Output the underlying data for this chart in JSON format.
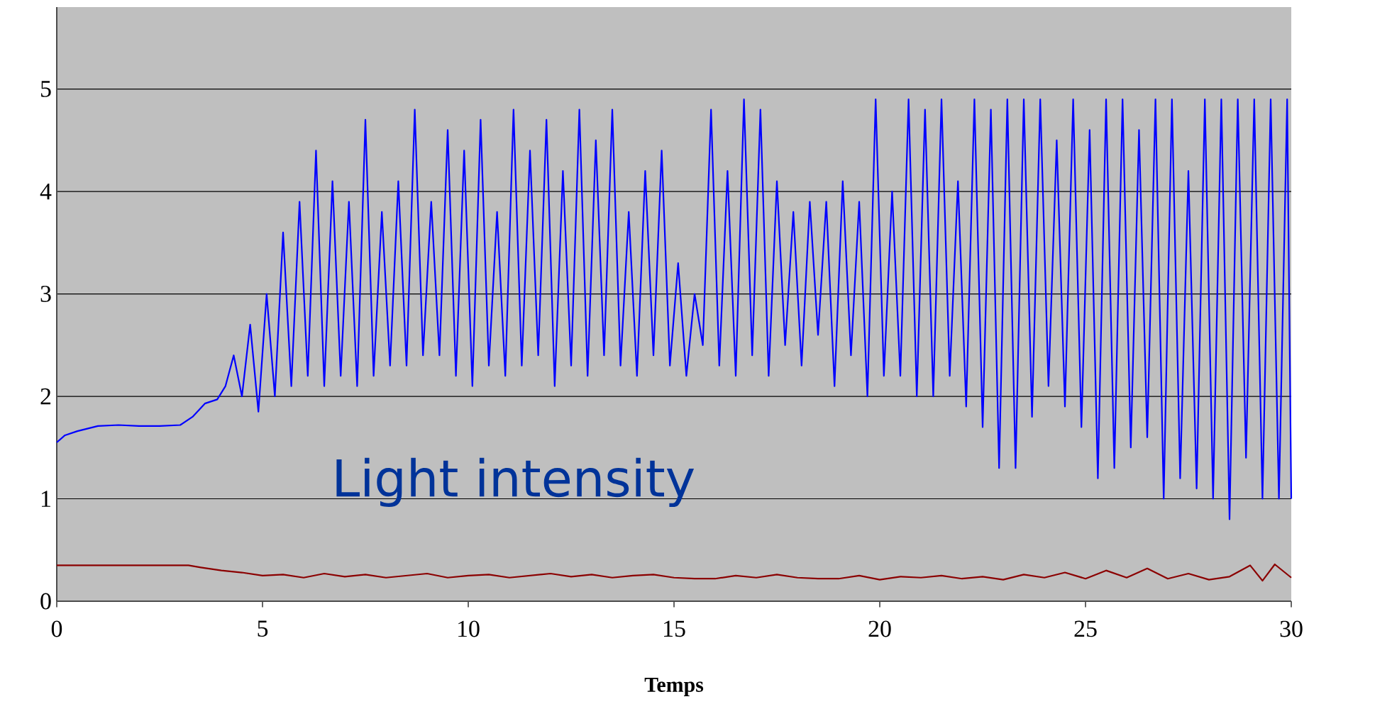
{
  "chart_data": {
    "type": "line",
    "xlabel": "Temps",
    "annotations": [
      "Light intensity"
    ],
    "xlim": [
      0,
      30
    ],
    "xticks": [
      0,
      5,
      10,
      15,
      20,
      25,
      30
    ],
    "ylim": [
      0,
      5.8
    ],
    "yticks": [
      0,
      1,
      2,
      3,
      4,
      5
    ],
    "grid": "y",
    "line_style": "solid",
    "marker": "none",
    "series": [
      {
        "color": "#8b0000",
        "x": [
          0,
          3.2,
          3.5,
          4,
          4.5,
          5,
          5.5,
          6,
          6.5,
          7,
          7.5,
          8,
          8.5,
          9,
          9.5,
          10,
          10.5,
          11,
          11.5,
          12,
          12.5,
          13,
          13.5,
          14,
          14.5,
          15,
          15.5,
          16,
          16.5,
          17,
          17.5,
          18,
          18.5,
          19,
          19.5,
          20,
          20.5,
          21,
          21.5,
          22,
          22.5,
          23,
          23.5,
          24,
          24.5,
          25,
          25.5,
          26,
          26.5,
          27,
          27.5,
          28,
          28.5,
          29,
          29.3,
          29.6,
          30
        ],
        "values": [
          0.35,
          0.35,
          0.33,
          0.3,
          0.28,
          0.25,
          0.26,
          0.23,
          0.27,
          0.24,
          0.26,
          0.23,
          0.25,
          0.27,
          0.23,
          0.25,
          0.26,
          0.23,
          0.25,
          0.27,
          0.24,
          0.26,
          0.23,
          0.25,
          0.26,
          0.23,
          0.22,
          0.22,
          0.25,
          0.23,
          0.26,
          0.23,
          0.22,
          0.22,
          0.25,
          0.21,
          0.24,
          0.23,
          0.25,
          0.22,
          0.24,
          0.21,
          0.26,
          0.23,
          0.28,
          0.22,
          0.3,
          0.23,
          0.32,
          0.22,
          0.27,
          0.21,
          0.24,
          0.35,
          0.2,
          0.36,
          0.23
        ]
      },
      {
        "color": "#0000ff",
        "x": [
          0,
          0.2,
          0.5,
          1,
          1.5,
          2,
          2.5,
          3,
          3.3,
          3.6,
          3.9,
          4.1,
          4.3,
          4.5,
          4.7,
          4.9,
          5.1,
          5.3,
          5.5,
          5.7,
          5.9,
          6.1,
          6.3,
          6.5,
          6.7,
          6.9,
          7.1,
          7.3,
          7.5,
          7.7,
          7.9,
          8.1,
          8.3,
          8.5,
          8.7,
          8.9,
          9.1,
          9.3,
          9.5,
          9.7,
          9.9,
          10.1,
          10.3,
          10.5,
          10.7,
          10.9,
          11.1,
          11.3,
          11.5,
          11.7,
          11.9,
          12.1,
          12.3,
          12.5,
          12.7,
          12.9,
          13.1,
          13.3,
          13.5,
          13.7,
          13.9,
          14.1,
          14.3,
          14.5,
          14.7,
          14.9,
          15.1,
          15.3,
          15.5,
          15.7,
          15.9,
          16.1,
          16.3,
          16.5,
          16.7,
          16.9,
          17.1,
          17.3,
          17.5,
          17.7,
          17.9,
          18.1,
          18.3,
          18.5,
          18.7,
          18.9,
          19.1,
          19.3,
          19.5,
          19.7,
          19.9,
          20.1,
          20.3,
          20.5,
          20.7,
          20.9,
          21.1,
          21.3,
          21.5,
          21.7,
          21.9,
          22.1,
          22.3,
          22.5,
          22.7,
          22.9,
          23.1,
          23.3,
          23.5,
          23.7,
          23.9,
          24.1,
          24.3,
          24.5,
          24.7,
          24.9,
          25.1,
          25.3,
          25.5,
          25.7,
          25.9,
          26.1,
          26.3,
          26.5,
          26.7,
          26.9,
          27.1,
          27.3,
          27.5,
          27.7,
          27.9,
          28.1,
          28.3,
          28.5,
          28.7,
          28.9,
          29.1,
          29.3,
          29.5,
          29.7,
          29.9,
          30
        ],
        "values": [
          1.55,
          1.62,
          1.66,
          1.71,
          1.72,
          1.71,
          1.71,
          1.72,
          1.8,
          1.93,
          1.97,
          2.1,
          2.4,
          2.0,
          2.7,
          1.85,
          3.0,
          2.0,
          3.6,
          2.1,
          3.9,
          2.2,
          4.4,
          2.1,
          4.1,
          2.2,
          3.9,
          2.1,
          4.7,
          2.2,
          3.8,
          2.3,
          4.1,
          2.3,
          4.8,
          2.4,
          3.9,
          2.4,
          4.6,
          2.2,
          4.4,
          2.1,
          4.7,
          2.3,
          3.8,
          2.2,
          4.8,
          2.3,
          4.4,
          2.4,
          4.7,
          2.1,
          4.2,
          2.3,
          4.8,
          2.2,
          4.5,
          2.4,
          4.8,
          2.3,
          3.8,
          2.2,
          4.2,
          2.4,
          4.4,
          2.3,
          3.3,
          2.2,
          3.0,
          2.5,
          4.8,
          2.3,
          4.2,
          2.2,
          4.9,
          2.4,
          4.8,
          2.2,
          4.1,
          2.5,
          3.8,
          2.3,
          3.9,
          2.6,
          3.9,
          2.1,
          4.1,
          2.4,
          3.9,
          2.0,
          4.9,
          2.2,
          4.0,
          2.2,
          4.9,
          2.0,
          4.8,
          2.0,
          4.9,
          2.2,
          4.1,
          1.9,
          4.9,
          1.7,
          4.8,
          1.3,
          4.9,
          1.3,
          4.9,
          1.8,
          4.9,
          2.1,
          4.5,
          1.9,
          4.9,
          1.7,
          4.6,
          1.2,
          4.9,
          1.3,
          4.9,
          1.5,
          4.6,
          1.6,
          4.9,
          1.0,
          4.9,
          1.2,
          4.2,
          1.1,
          4.9,
          1.0,
          4.9,
          0.8,
          4.9,
          1.4,
          4.9,
          1.0,
          4.9,
          1.0,
          4.9,
          1.0
        ]
      }
    ]
  }
}
